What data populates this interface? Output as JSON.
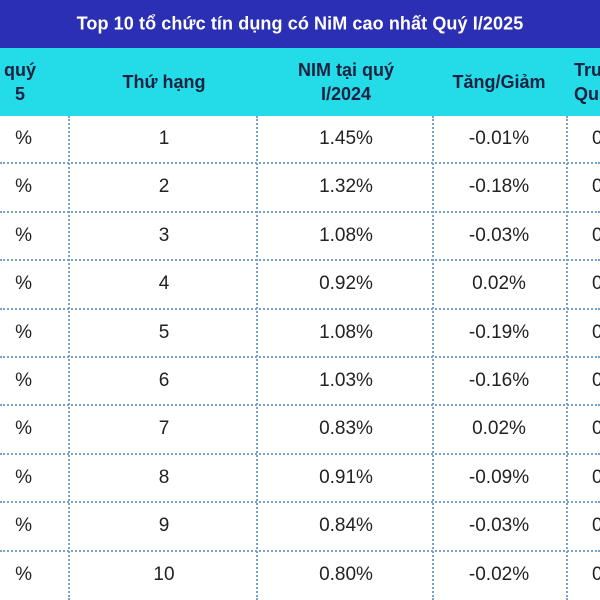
{
  "title": "Top 10 tổ chức tín dụng có NiM cao nhất Quý I/2025",
  "headers": {
    "col0_line1": "quý",
    "col0_line2": "5",
    "col1": "Thứ hạng",
    "col2_line1": "NIM tại quý",
    "col2_line2": "I/2024",
    "col3": "Tăng/Giảm",
    "col4_line1": "Trư",
    "col4_line2": "Qu"
  },
  "rows": [
    {
      "c0": "%",
      "rank": "1",
      "nim": "1.45%",
      "change": "-0.01%",
      "c4": "0"
    },
    {
      "c0": "%",
      "rank": "2",
      "nim": "1.32%",
      "change": "-0.18%",
      "c4": "0"
    },
    {
      "c0": "%",
      "rank": "3",
      "nim": "1.08%",
      "change": "-0.03%",
      "c4": "0"
    },
    {
      "c0": "%",
      "rank": "4",
      "nim": "0.92%",
      "change": "0.02%",
      "c4": "0"
    },
    {
      "c0": "%",
      "rank": "5",
      "nim": "1.08%",
      "change": "-0.19%",
      "c4": "0"
    },
    {
      "c0": "%",
      "rank": "6",
      "nim": "1.03%",
      "change": "-0.16%",
      "c4": "0"
    },
    {
      "c0": "%",
      "rank": "7",
      "nim": "0.83%",
      "change": "0.02%",
      "c4": "0"
    },
    {
      "c0": "%",
      "rank": "8",
      "nim": "0.91%",
      "change": "-0.09%",
      "c4": "0"
    },
    {
      "c0": "%",
      "rank": "9",
      "nim": "0.84%",
      "change": "-0.03%",
      "c4": "0"
    },
    {
      "c0": "%",
      "rank": "10",
      "nim": "0.80%",
      "change": "-0.02%",
      "c4": "0"
    }
  ],
  "colors": {
    "title_bg": "#2b2fb3",
    "header_bg": "#23dce8",
    "grid_line": "#7ba3c9"
  }
}
